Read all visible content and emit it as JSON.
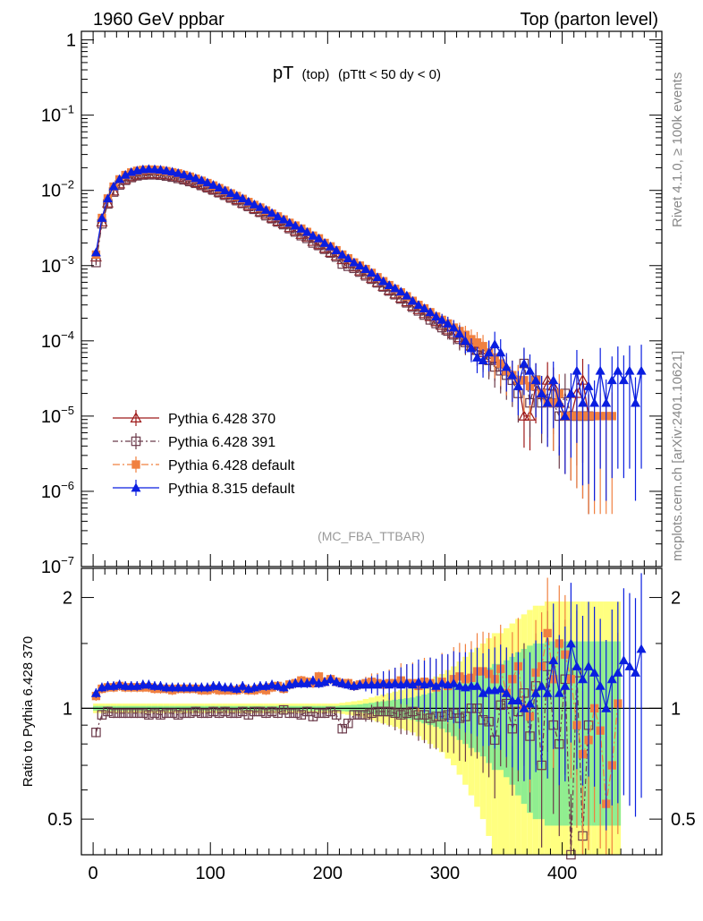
{
  "header": {
    "left": "1960 GeV ppbar",
    "right": "Top (parton level)"
  },
  "side_labels": {
    "rivet": "Rivet 4.1.0, ≥ 100k events",
    "mcplots": "mcplots.cern.ch [arXiv:2401.10621]"
  },
  "analysis_tag": "(MC_FBA_TTBAR)",
  "chart_data": [
    {
      "type": "line",
      "title": "pT (top) (pTtt < 50 dy < 0)",
      "title_main": "pT",
      "title_sub": "(top)",
      "title_cond": "(pTtt < 50 dy < 0)",
      "yscale": "log",
      "xlim": [
        -10,
        485
      ],
      "ylim": [
        1e-07,
        1.3
      ],
      "ytick_labels": [
        "1",
        "10^-1",
        "10^-2",
        "10^-3",
        "10^-4",
        "10^-5",
        "10^-6",
        "10^-7"
      ],
      "x_step": 5,
      "legend_position": "lower-left",
      "series": [
        {
          "name": "Pythia 6.428 370",
          "color": "#9e1a1a",
          "marker": "open-triangle",
          "x0": 2.5,
          "values": [
            0.0013,
            0.0038,
            0.0068,
            0.0098,
            0.0122,
            0.014,
            0.0152,
            0.016,
            0.0164,
            0.0166,
            0.0166,
            0.0164,
            0.016,
            0.0155,
            0.0149,
            0.0142,
            0.0135,
            0.0127,
            0.0119,
            0.0111,
            0.0103,
            0.0095,
            0.0088,
            0.0081,
            0.0075,
            0.0068,
            0.0063,
            0.0057,
            0.0052,
            0.0048,
            0.0043,
            0.0039,
            0.0036,
            0.0032,
            0.0029,
            0.0026,
            0.0024,
            0.0021,
            0.0019,
            0.0017,
            0.0015,
            0.00135,
            0.0012,
            0.00107,
            0.00096,
            0.00085,
            0.00076,
            0.00068,
            0.0006,
            0.00053,
            0.00047,
            0.00042,
            0.00037,
            0.00033,
            0.00029,
            0.00026,
            0.00023,
            0.00021,
            0.00018,
            0.00016,
            0.00014,
            0.000125,
            0.00011,
            0.0001,
            8.5e-05,
            7.5e-05,
            7e-05,
            6e-05,
            5.5e-05,
            4.5e-05,
            4e-05,
            3.5e-05,
            3e-05,
            1e-05,
            1e-05,
            2.5e-05,
            2e-05,
            3e-05,
            2.5e-05,
            1.5e-05,
            1e-05,
            1e-05,
            2e-05,
            3e-05,
            1e-05
          ]
        },
        {
          "name": "Pythia 6.428 391",
          "color": "#6b3a4a",
          "marker": "open-square",
          "x0": 2.5,
          "values": [
            0.0011,
            0.0036,
            0.0066,
            0.0095,
            0.0118,
            0.0136,
            0.0148,
            0.0156,
            0.016,
            0.0161,
            0.0161,
            0.0159,
            0.0155,
            0.015,
            0.0144,
            0.0138,
            0.0131,
            0.0124,
            0.0116,
            0.0108,
            0.0101,
            0.0093,
            0.0086,
            0.0079,
            0.0073,
            0.0067,
            0.0061,
            0.0056,
            0.0051,
            0.0046,
            0.0042,
            0.0038,
            0.0035,
            0.0031,
            0.0028,
            0.0025,
            0.0023,
            0.002,
            0.00185,
            0.00165,
            0.00147,
            0.0013,
            0.00105,
            0.00098,
            0.00092,
            0.00082,
            0.00073,
            0.00066,
            0.00059,
            0.00052,
            0.00046,
            0.00041,
            0.00036,
            0.00032,
            0.00028,
            0.00025,
            0.00022,
            0.00019,
            0.00017,
            0.00015,
            0.000135,
            0.00012,
            0.000105,
            9.5e-05,
            8.5e-05,
            7.5e-05,
            6.5e-05,
            5.5e-05,
            4.5e-05,
            4e-05,
            3.5e-05,
            3e-05,
            2e-05,
            5e-05,
            1.5e-05,
            3e-05,
            1.5e-05,
            2e-05,
            1.5e-05,
            1e-05,
            2e-05,
            1e-05,
            1e-05,
            1e-05,
            1e-05
          ]
        },
        {
          "name": "Pythia 6.428 default",
          "color": "#f08040",
          "marker": "filled-square",
          "x0": 2.5,
          "values": [
            0.0014,
            0.0043,
            0.0078,
            0.0112,
            0.014,
            0.016,
            0.0173,
            0.0182,
            0.0187,
            0.0189,
            0.0188,
            0.0185,
            0.018,
            0.0174,
            0.0168,
            0.016,
            0.0152,
            0.0143,
            0.0134,
            0.0125,
            0.0116,
            0.0107,
            0.0099,
            0.0091,
            0.0084,
            0.0077,
            0.007,
            0.0064,
            0.0059,
            0.0054,
            0.0049,
            0.0045,
            0.0041,
            0.0037,
            0.0034,
            0.0031,
            0.0028,
            0.0025,
            0.0023,
            0.002,
            0.0018,
            0.0016,
            0.0014,
            0.00125,
            0.0011,
            0.001,
            0.0009,
            0.0008,
            0.0007,
            0.00062,
            0.00055,
            0.00049,
            0.00044,
            0.00039,
            0.00034,
            0.0003,
            0.00027,
            0.00024,
            0.00021,
            0.00019,
            0.00017,
            0.00015,
            0.000135,
            0.00012,
            0.000105,
            9.5e-05,
            8.5e-05,
            7e-05,
            6e-05,
            5e-05,
            4e-05,
            3.5e-05,
            3e-05,
            3e-05,
            2.5e-05,
            3e-05,
            2e-05,
            1.5e-05,
            1.5e-05,
            2e-05,
            1e-05,
            1e-05,
            1e-05,
            1e-05,
            1e-05,
            1e-05,
            1e-05,
            1e-05,
            1e-05
          ]
        },
        {
          "name": "Pythia 8.315 default",
          "color": "#0a1ee0",
          "marker": "filled-triangle",
          "x0": 2.5,
          "values": [
            0.0015,
            0.0043,
            0.0078,
            0.0113,
            0.0141,
            0.0161,
            0.0175,
            0.0184,
            0.019,
            0.0192,
            0.0191,
            0.0188,
            0.0183,
            0.0177,
            0.017,
            0.0162,
            0.0154,
            0.0145,
            0.0136,
            0.0127,
            0.0118,
            0.0109,
            0.01,
            0.0092,
            0.0085,
            0.0078,
            0.0071,
            0.0065,
            0.006,
            0.0055,
            0.005,
            0.0045,
            0.0041,
            0.0037,
            0.0034,
            0.0031,
            0.0028,
            0.0025,
            0.0023,
            0.002,
            0.0018,
            0.0016,
            0.0014,
            0.00125,
            0.0011,
            0.001,
            0.0009,
            0.0008,
            0.0007,
            0.00062,
            0.00055,
            0.0005,
            0.00045,
            0.0004,
            0.00034,
            0.0003,
            0.00027,
            0.00024,
            0.00021,
            0.00019,
            0.00017,
            0.00015,
            0.000125,
            0.0001,
            8e-05,
            6e-05,
            5.5e-05,
            7e-05,
            9e-05,
            7e-05,
            4.5e-05,
            3.5e-05,
            2.5e-05,
            5e-05,
            4e-05,
            3e-05,
            2e-05,
            1.5e-05,
            3e-05,
            1.5e-05,
            1e-05,
            2e-05,
            4e-05,
            1.5e-05,
            2.5e-05,
            1.5e-05,
            4e-05,
            1.5e-05,
            3e-05,
            4e-05,
            3e-05,
            4e-05,
            1.5e-05,
            4e-05
          ]
        }
      ]
    },
    {
      "type": "line",
      "ylabel": "Ratio to Pythia 6.428 370",
      "yscale": "log",
      "xlim": [
        -10,
        485
      ],
      "ylim": [
        0.4,
        2.4
      ],
      "ytick_labels": [
        "2",
        "1",
        "0.5"
      ],
      "xtick_labels": [
        "0",
        "100",
        "200",
        "300",
        "400"
      ],
      "reference_line": 1,
      "x_step": 5,
      "band_edges": [
        0,
        450
      ],
      "bands": [
        {
          "name": "mc-uncertainty-yellow",
          "color": "#ffff80",
          "half_width": [
            0.03,
            0.03,
            0.03,
            0.03,
            0.03,
            0.03,
            0.03,
            0.03,
            0.03,
            0.03,
            0.03,
            0.03,
            0.03,
            0.03,
            0.03,
            0.03,
            0.03,
            0.03,
            0.03,
            0.03,
            0.03,
            0.03,
            0.03,
            0.03,
            0.03,
            0.03,
            0.03,
            0.03,
            0.03,
            0.03,
            0.03,
            0.03,
            0.03,
            0.03,
            0.03,
            0.03,
            0.03,
            0.03,
            0.03,
            0.03,
            0.03,
            0.03,
            0.035,
            0.04,
            0.045,
            0.05,
            0.06,
            0.07,
            0.08,
            0.09,
            0.1,
            0.11,
            0.12,
            0.13,
            0.14,
            0.16,
            0.18,
            0.2,
            0.22,
            0.24,
            0.27,
            0.3,
            0.34,
            0.38,
            0.42,
            0.46,
            0.5,
            0.55,
            0.6,
            0.6,
            0.65,
            0.7,
            0.75,
            0.8,
            0.85,
            0.9,
            0.9,
            0.95,
            0.95,
            0.95,
            0.95,
            0.95,
            0.95,
            0.95,
            0.95,
            0.95,
            0.95,
            0.95,
            0.95,
            0.95
          ]
        },
        {
          "name": "mc-uncertainty-green",
          "color": "#90ee90",
          "half_width": [
            0.015,
            0.015,
            0.015,
            0.015,
            0.015,
            0.015,
            0.015,
            0.015,
            0.015,
            0.015,
            0.015,
            0.015,
            0.015,
            0.015,
            0.015,
            0.015,
            0.015,
            0.015,
            0.015,
            0.015,
            0.015,
            0.015,
            0.015,
            0.015,
            0.015,
            0.015,
            0.015,
            0.015,
            0.015,
            0.015,
            0.015,
            0.015,
            0.015,
            0.015,
            0.015,
            0.015,
            0.015,
            0.015,
            0.015,
            0.015,
            0.015,
            0.015,
            0.018,
            0.02,
            0.022,
            0.025,
            0.03,
            0.035,
            0.04,
            0.045,
            0.05,
            0.055,
            0.06,
            0.065,
            0.07,
            0.08,
            0.09,
            0.1,
            0.11,
            0.12,
            0.14,
            0.16,
            0.18,
            0.2,
            0.22,
            0.24,
            0.26,
            0.29,
            0.32,
            0.32,
            0.35,
            0.38,
            0.42,
            0.45,
            0.48,
            0.5,
            0.5,
            0.52,
            0.52,
            0.52,
            0.52,
            0.52,
            0.52,
            0.52,
            0.52,
            0.52,
            0.52,
            0.52,
            0.52,
            0.52
          ]
        }
      ],
      "series": [
        {
          "name": "Pythia 6.428 391 / 370",
          "color": "#6b3a4a",
          "marker": "open-square",
          "x0": 2.5,
          "values": [
            0.86,
            0.96,
            0.98,
            0.97,
            0.97,
            0.97,
            0.97,
            0.97,
            0.97,
            0.96,
            0.97,
            0.96,
            0.97,
            0.97,
            0.96,
            0.97,
            0.97,
            0.98,
            0.97,
            0.97,
            0.98,
            0.97,
            0.98,
            0.97,
            0.97,
            0.98,
            0.96,
            0.98,
            0.98,
            0.97,
            0.98,
            0.97,
            0.99,
            0.97,
            0.97,
            0.96,
            0.98,
            0.95,
            0.97,
            0.97,
            0.98,
            0.96,
            0.88,
            0.91,
            0.96,
            0.96,
            0.96,
            0.97,
            0.98,
            0.98,
            0.98,
            0.97,
            0.96,
            0.97,
            0.98,
            0.96,
            0.96,
            0.94,
            0.95,
            0.95,
            0.96,
            0.97,
            0.94,
            0.95,
            1.0,
            1.0,
            0.93,
            0.92,
            0.82,
            1.02,
            1.03,
            0.88,
            0.98,
            1.1,
            0.84,
            1.15,
            0.7,
            1.3,
            0.9,
            0.8,
            1.2,
            0.4,
            1.25,
            0.45,
            0.9
          ]
        },
        {
          "name": "Pythia 6.428 default / 370",
          "color": "#f08040",
          "marker": "filled-square",
          "x0": 2.5,
          "values": [
            1.08,
            1.13,
            1.14,
            1.14,
            1.15,
            1.14,
            1.14,
            1.14,
            1.14,
            1.14,
            1.13,
            1.13,
            1.13,
            1.12,
            1.13,
            1.13,
            1.13,
            1.13,
            1.12,
            1.12,
            1.13,
            1.12,
            1.12,
            1.12,
            1.12,
            1.13,
            1.12,
            1.12,
            1.13,
            1.12,
            1.14,
            1.15,
            1.13,
            1.16,
            1.17,
            1.19,
            1.18,
            1.17,
            1.22,
            1.18,
            1.2,
            1.18,
            1.17,
            1.17,
            1.15,
            1.16,
            1.17,
            1.18,
            1.17,
            1.16,
            1.17,
            1.17,
            1.19,
            1.17,
            1.17,
            1.15,
            1.18,
            1.17,
            1.14,
            1.18,
            1.15,
            1.2,
            1.22,
            1.2,
            1.21,
            1.26,
            1.26,
            1.24,
            1.2,
            1.28,
            1.1,
            1.2,
            1.3,
            1.0,
            0.95,
            1.25,
            1.3,
            1.6,
            1.2,
            1.5,
            1.4,
            1.2,
            0.9,
            0.75,
            0.82,
            1.0,
            0.87,
            0.55,
            0.7,
            1.03
          ]
        },
        {
          "name": "Pythia 8.315 default / 370",
          "color": "#0a1ee0",
          "marker": "filled-triangle",
          "x0": 2.5,
          "values": [
            1.1,
            1.14,
            1.15,
            1.15,
            1.16,
            1.15,
            1.15,
            1.15,
            1.16,
            1.16,
            1.15,
            1.15,
            1.14,
            1.14,
            1.14,
            1.14,
            1.14,
            1.14,
            1.14,
            1.14,
            1.15,
            1.15,
            1.14,
            1.14,
            1.13,
            1.15,
            1.13,
            1.14,
            1.15,
            1.15,
            1.16,
            1.15,
            1.14,
            1.16,
            1.17,
            1.17,
            1.17,
            1.19,
            1.17,
            1.18,
            1.2,
            1.18,
            1.17,
            1.16,
            1.15,
            1.16,
            1.16,
            1.16,
            1.16,
            1.17,
            1.16,
            1.17,
            1.16,
            1.17,
            1.16,
            1.18,
            1.16,
            1.17,
            1.15,
            1.17,
            1.16,
            1.17,
            1.15,
            1.14,
            1.15,
            1.15,
            1.1,
            1.12,
            1.12,
            1.13,
            1.1,
            1.05,
            1.05,
            1.0,
            1.03,
            1.1,
            1.15,
            1.1,
            1.35,
            1.1,
            1.15,
            1.5,
            1.3,
            1.2,
            1.3,
            1.25,
            1.15,
            1.0,
            1.2,
            1.25,
            1.35,
            1.3,
            1.25,
            1.45
          ]
        }
      ]
    }
  ]
}
